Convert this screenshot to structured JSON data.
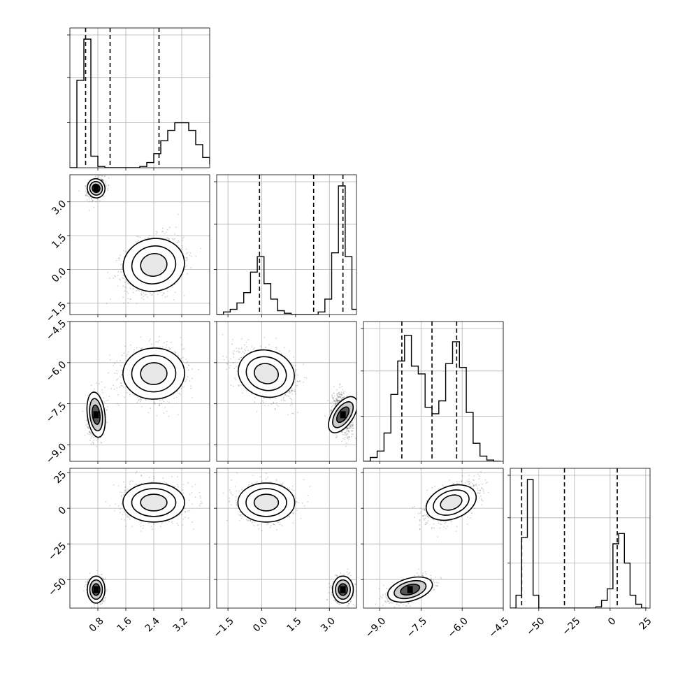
{
  "chart_data": {
    "type": "corner",
    "description_note": "",
    "params": [
      {
        "ylim": null,
        "xlim": [
          0.0,
          4.0
        ],
        "ticks": [
          0.8,
          1.6,
          2.4,
          3.2
        ],
        "tick_labels": [
          "0.8",
          "1.6",
          "2.4",
          "3.2"
        ]
      },
      {
        "xlim": [
          -2.0,
          4.2
        ],
        "ticks": [
          -1.5,
          0.0,
          1.5,
          3.0
        ],
        "tick_labels": [
          "−1.5",
          "0.0",
          "1.5",
          "3.0"
        ]
      },
      {
        "xlim": [
          -9.6,
          -4.5
        ],
        "ticks": [
          -9.0,
          -7.5,
          -6.0,
          -4.5
        ],
        "tick_labels": [
          "−9.0",
          "−7.5",
          "−6.0",
          "−4.5"
        ]
      },
      {
        "xlim": [
          -70,
          28
        ],
        "ticks": [
          -50,
          -25,
          0,
          25
        ],
        "tick_labels": [
          "−50",
          "−25",
          "0",
          "25"
        ]
      }
    ],
    "histograms": [
      {
        "edges_start": 0.0,
        "bin_width": 0.2,
        "counts": [
          0.0,
          0.68,
          1.0,
          0.09,
          0.01,
          0.0,
          0.0,
          0.0,
          0.0,
          0.0,
          0.01,
          0.04,
          0.11,
          0.21,
          0.29,
          0.35,
          0.35,
          0.29,
          0.18,
          0.08,
          0.03,
          0.01,
          0.0
        ],
        "quantiles": [
          0.45,
          1.15,
          2.55
        ]
      },
      {
        "edges_start": -2.0,
        "bin_width": 0.3,
        "counts": [
          0.0,
          0.02,
          0.04,
          0.09,
          0.17,
          0.33,
          0.45,
          0.24,
          0.12,
          0.03,
          0.01,
          0.0,
          0.0,
          0.0,
          0.0,
          0.02,
          0.12,
          0.48,
          1.0,
          0.45,
          0.04
        ],
        "quantiles": [
          -0.1,
          2.3,
          3.6
        ]
      },
      {
        "edges_start": -9.6,
        "bin_width": 0.25,
        "counts": [
          0.0,
          0.03,
          0.08,
          0.22,
          0.52,
          0.78,
          0.98,
          0.74,
          0.68,
          0.42,
          0.37,
          0.47,
          0.76,
          0.93,
          0.73,
          0.38,
          0.14,
          0.04,
          0.01,
          0.0
        ],
        "quantiles": [
          -8.2,
          -7.1,
          -6.2
        ]
      },
      {
        "edges_start": -70,
        "bin_width": 4,
        "counts": [
          0.0,
          0.1,
          0.55,
          1.0,
          0.1,
          0.0,
          0.0,
          0.0,
          0.0,
          0.0,
          0.0,
          0.0,
          0.0,
          0.0,
          0.0,
          0.01,
          0.06,
          0.15,
          0.5,
          0.58,
          0.35,
          0.1,
          0.03,
          0.0
        ],
        "quantiles": [
          -62,
          -32,
          5
        ]
      }
    ],
    "clusters": [
      {
        "mean": [
          0.75,
          3.6,
          -7.9,
          -57
        ],
        "sd": [
          0.12,
          0.22,
          0.4,
          4.5
        ]
      },
      {
        "mean": [
          2.4,
          0.2,
          -6.4,
          4
        ],
        "sd": [
          0.42,
          0.6,
          0.45,
          6.5
        ]
      }
    ],
    "grid": true
  }
}
